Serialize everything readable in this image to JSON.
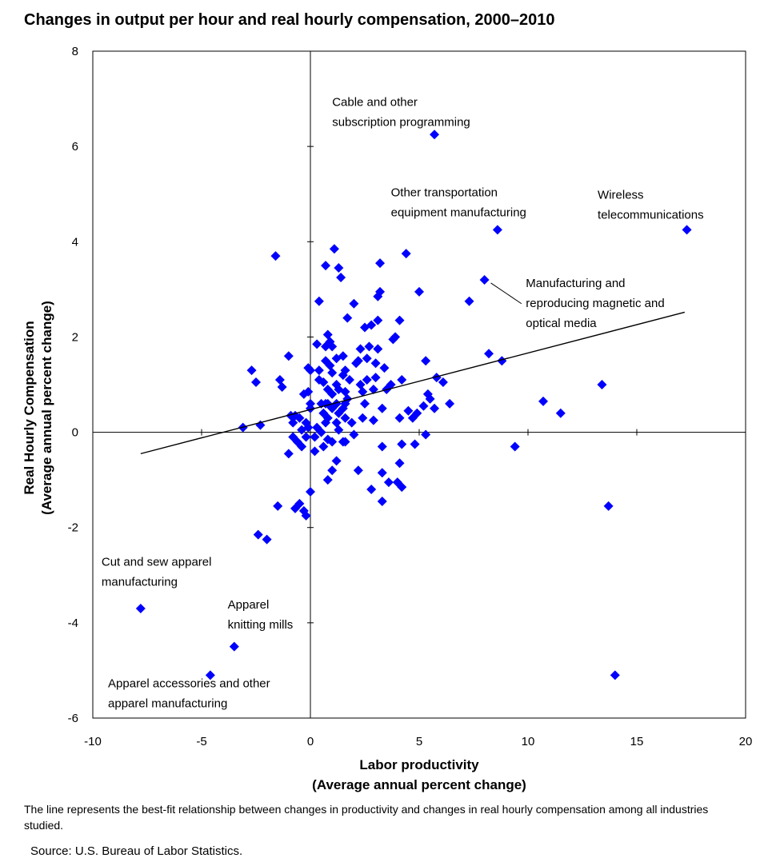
{
  "chart_data": {
    "type": "scatter",
    "title": "Changes in output per hour and real hourly compensation, 2000–2010",
    "xlabel_lines": [
      "Labor productivity",
      "(Average annual  percent change)"
    ],
    "ylabel_lines": [
      "Real Hourly Compensation",
      "(Average annual  percent change)"
    ],
    "xlim": [
      -10,
      20
    ],
    "ylim": [
      -6,
      8
    ],
    "xticks": [
      "-10",
      "-5",
      "0",
      "5",
      "10",
      "15",
      "20"
    ],
    "yticks": [
      "8",
      "6",
      "4",
      "2",
      "0",
      "-2",
      "-4",
      "-6"
    ],
    "marker": "diamond",
    "series_color": "#0000ff",
    "trend_line": {
      "x": [
        -7.8,
        17.2
      ],
      "y": [
        -0.45,
        2.52
      ]
    },
    "points": [
      [
        5.7,
        6.25
      ],
      [
        8.6,
        4.25
      ],
      [
        17.3,
        4.25
      ],
      [
        8.0,
        3.2
      ],
      [
        -7.8,
        -3.7
      ],
      [
        -3.5,
        -4.5
      ],
      [
        -4.6,
        -5.1
      ],
      [
        14.0,
        -5.1
      ],
      [
        13.7,
        -1.55
      ],
      [
        13.4,
        1.0
      ],
      [
        11.5,
        0.4
      ],
      [
        10.7,
        0.65
      ],
      [
        9.4,
        -0.3
      ],
      [
        8.8,
        1.5
      ],
      [
        8.2,
        1.65
      ],
      [
        7.3,
        2.75
      ],
      [
        6.4,
        0.6
      ],
      [
        6.1,
        1.05
      ],
      [
        5.8,
        1.15
      ],
      [
        5.7,
        0.5
      ],
      [
        5.5,
        0.7
      ],
      [
        5.4,
        0.8
      ],
      [
        5.2,
        0.55
      ],
      [
        5.3,
        1.5
      ],
      [
        5.3,
        -0.05
      ],
      [
        5.0,
        2.95
      ],
      [
        4.9,
        0.4
      ],
      [
        4.8,
        -0.25
      ],
      [
        4.7,
        0.3
      ],
      [
        4.5,
        0.45
      ],
      [
        4.4,
        3.75
      ],
      [
        4.2,
        1.1
      ],
      [
        4.1,
        2.35
      ],
      [
        4.1,
        0.3
      ],
      [
        4.2,
        -0.25
      ],
      [
        4.1,
        -0.65
      ],
      [
        4.2,
        -1.15
      ],
      [
        4.0,
        -1.05
      ],
      [
        3.9,
        2.0
      ],
      [
        3.8,
        1.95
      ],
      [
        3.7,
        1.0
      ],
      [
        3.6,
        -1.05
      ],
      [
        3.5,
        0.9
      ],
      [
        3.4,
        1.35
      ],
      [
        3.3,
        0.5
      ],
      [
        3.3,
        -0.3
      ],
      [
        3.3,
        -0.85
      ],
      [
        3.3,
        -1.45
      ],
      [
        3.2,
        3.55
      ],
      [
        3.2,
        2.95
      ],
      [
        3.1,
        2.85
      ],
      [
        3.1,
        2.35
      ],
      [
        3.1,
        1.75
      ],
      [
        3.0,
        1.45
      ],
      [
        3.0,
        1.15
      ],
      [
        2.9,
        0.9
      ],
      [
        2.9,
        0.25
      ],
      [
        2.8,
        -1.2
      ],
      [
        2.8,
        2.25
      ],
      [
        2.7,
        1.8
      ],
      [
        2.6,
        1.55
      ],
      [
        2.6,
        1.1
      ],
      [
        2.5,
        0.6
      ],
      [
        2.5,
        2.2
      ],
      [
        2.4,
        0.3
      ],
      [
        2.3,
        1.75
      ],
      [
        2.3,
        1.0
      ],
      [
        2.4,
        0.85
      ],
      [
        2.2,
        -0.8
      ],
      [
        2.2,
        1.5
      ],
      [
        2.1,
        1.45
      ],
      [
        2.0,
        2.7
      ],
      [
        2.0,
        -0.05
      ],
      [
        1.9,
        0.2
      ],
      [
        1.8,
        1.1
      ],
      [
        1.7,
        0.7
      ],
      [
        1.7,
        2.4
      ],
      [
        1.6,
        1.3
      ],
      [
        1.6,
        0.85
      ],
      [
        1.6,
        0.6
      ],
      [
        1.6,
        0.3
      ],
      [
        1.6,
        -0.2
      ],
      [
        1.5,
        1.6
      ],
      [
        1.5,
        1.2
      ],
      [
        1.5,
        0.5
      ],
      [
        1.5,
        -0.2
      ],
      [
        1.4,
        3.25
      ],
      [
        1.3,
        0.9
      ],
      [
        1.3,
        0.4
      ],
      [
        1.3,
        0.05
      ],
      [
        1.3,
        3.45
      ],
      [
        1.2,
        1.55
      ],
      [
        1.2,
        1.0
      ],
      [
        1.2,
        0.6
      ],
      [
        1.2,
        0.2
      ],
      [
        1.2,
        -0.6
      ],
      [
        1.1,
        3.85
      ],
      [
        1.0,
        1.8
      ],
      [
        1.0,
        1.25
      ],
      [
        1.0,
        0.8
      ],
      [
        1.0,
        0.5
      ],
      [
        1.0,
        -0.2
      ],
      [
        1.0,
        -0.8
      ],
      [
        0.9,
        1.9
      ],
      [
        0.9,
        1.4
      ],
      [
        0.8,
        2.05
      ],
      [
        0.8,
        0.9
      ],
      [
        0.8,
        0.6
      ],
      [
        0.8,
        0.3
      ],
      [
        0.8,
        -0.15
      ],
      [
        0.8,
        -1.0
      ],
      [
        0.7,
        3.5
      ],
      [
        0.7,
        1.8
      ],
      [
        0.7,
        1.5
      ],
      [
        0.7,
        0.6
      ],
      [
        0.7,
        0.2
      ],
      [
        0.6,
        1.05
      ],
      [
        0.6,
        0.4
      ],
      [
        0.6,
        -0.3
      ],
      [
        0.5,
        0.6
      ],
      [
        0.5,
        0.0
      ],
      [
        0.4,
        2.75
      ],
      [
        0.4,
        1.3
      ],
      [
        0.4,
        1.1
      ],
      [
        0.3,
        1.85
      ],
      [
        0.3,
        0.1
      ],
      [
        0.2,
        -0.4
      ],
      [
        0.2,
        -0.1
      ],
      [
        0.0,
        1.3
      ],
      [
        0.0,
        0.6
      ],
      [
        0.0,
        0.5
      ],
      [
        0.0,
        -1.25
      ],
      [
        -0.1,
        1.35
      ],
      [
        -0.1,
        0.85
      ],
      [
        -0.1,
        0.1
      ],
      [
        -0.2,
        -0.1
      ],
      [
        -0.2,
        0.2
      ],
      [
        -0.2,
        -1.75
      ],
      [
        -0.3,
        0.8
      ],
      [
        -0.3,
        -1.65
      ],
      [
        -0.4,
        -0.3
      ],
      [
        -0.4,
        0.05
      ],
      [
        -0.5,
        0.3
      ],
      [
        -0.5,
        -1.5
      ],
      [
        -0.6,
        -0.2
      ],
      [
        -0.7,
        0.35
      ],
      [
        -0.7,
        -1.6
      ],
      [
        -0.8,
        0.2
      ],
      [
        -0.8,
        -0.1
      ],
      [
        -0.9,
        0.35
      ],
      [
        -1.0,
        -0.45
      ],
      [
        -1.0,
        1.6
      ],
      [
        -1.3,
        0.95
      ],
      [
        -1.4,
        1.1
      ],
      [
        -1.5,
        -1.55
      ],
      [
        -1.6,
        3.7
      ],
      [
        -2.0,
        -2.25
      ],
      [
        -2.3,
        0.15
      ],
      [
        -2.4,
        -2.15
      ],
      [
        -2.5,
        1.05
      ],
      [
        -2.7,
        1.3
      ],
      [
        -3.1,
        0.1
      ]
    ],
    "annotations": [
      {
        "lines": [
          "Cable and other",
          "subscription programming"
        ],
        "x": 1.0,
        "y": 6.85
      },
      {
        "lines": [
          "Other transportation",
          "equipment manufacturing"
        ],
        "x": 3.7,
        "y": 4.95
      },
      {
        "lines": [
          "Wireless",
          "telecommunications"
        ],
        "x": 13.2,
        "y": 4.9
      },
      {
        "lines": [
          "Manufacturing and",
          "reproducing magnetic and",
          "optical media"
        ],
        "x": 9.9,
        "y": 3.05
      },
      {
        "lines": [
          "Cut and sew apparel",
          "manufacturing"
        ],
        "x": -9.6,
        "y": -2.8
      },
      {
        "lines": [
          "Apparel",
          "knitting mills"
        ],
        "x": -3.8,
        "y": -3.7
      },
      {
        "lines": [
          "Apparel accessories and other",
          "apparel manufacturing"
        ],
        "x": -9.3,
        "y": -5.35
      }
    ],
    "grid": false
  },
  "note": "The line represents the best-fit relationship between changes in productivity and changes in real hourly compensation among all industries studied.",
  "source": "Source: U.S. Bureau of Labor Statistics."
}
